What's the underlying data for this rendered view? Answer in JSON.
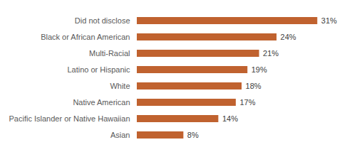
{
  "chart_data": {
    "type": "bar",
    "orientation": "horizontal",
    "categories": [
      "Did not disclose",
      "Black or African American",
      "Multi-Racial",
      "Latino or Hispanic",
      "White",
      "Native American",
      "Pacific Islander or Native Hawaiian",
      "Asian"
    ],
    "values": [
      31,
      24,
      21,
      19,
      18,
      17,
      14,
      8
    ],
    "value_labels": [
      "31%",
      "24%",
      "21%",
      "19%",
      "18%",
      "17%",
      "14%",
      "8%"
    ],
    "color": "#c0622f",
    "xlim": [
      0,
      35
    ],
    "data_labels": true,
    "tick_labels": "y"
  }
}
